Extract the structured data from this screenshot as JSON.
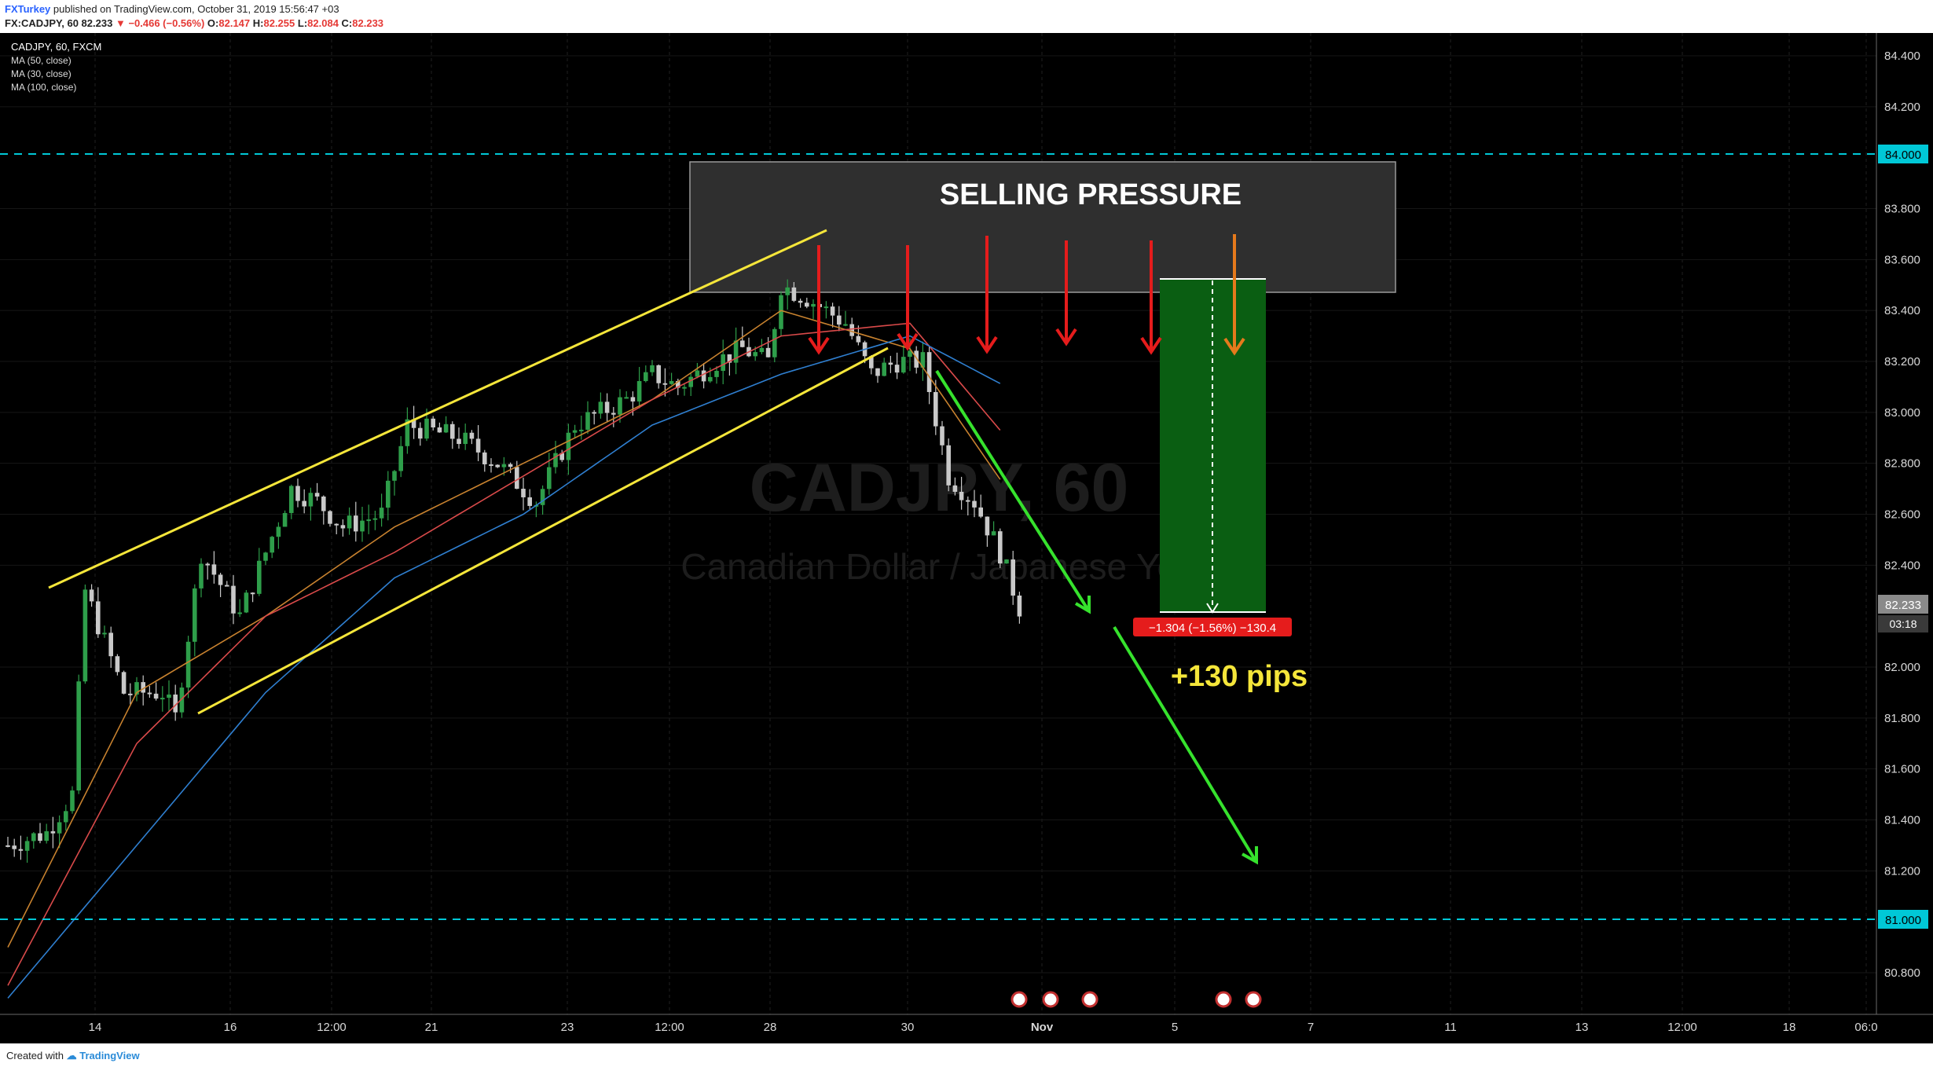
{
  "header": {
    "author": "FXTurkey",
    "published_text": "published on TradingView.com, October 31, 2019 15:56:47 +03",
    "symbol": "FX:CADJPY, 60",
    "last": "82.233",
    "change_arrow": "▼",
    "change": "−0.466 (−0.56%)",
    "open_label": "O:",
    "open": "82.147",
    "high_label": "H:",
    "high": "82.255",
    "low_label": "L:",
    "low": "82.084",
    "close_label": "C:",
    "close": "82.233"
  },
  "legend": {
    "symbol": "CADJPY, 60, FXCM",
    "indicators": [
      "MA (50, close)",
      "MA (30, close)",
      "MA (100, close)"
    ]
  },
  "watermark": {
    "ticker": "CADJPY, 60",
    "name": "Canadian Dollar / Japanese Yen"
  },
  "annotations": {
    "zone_label": "SELLING PRESSURE",
    "pips_label": "+130 pips",
    "measure_label": "−1.304 (−1.56%) −130.4"
  },
  "price_badges": {
    "level_high": "84.000",
    "level_low": "81.000",
    "last": "82.233",
    "countdown": "03:18"
  },
  "footer": {
    "created_with": "Created with",
    "brand": "TradingView"
  },
  "colors": {
    "background": "#000000",
    "trendline": "#f5e63a",
    "level": "#00c8d7",
    "arrow_red": "#e51c1c",
    "arrow_green": "#36e22d",
    "target_box": "#0a5e12",
    "ma50": "#d94a4a",
    "ma30": "#c8822f",
    "ma100": "#2f7fd0",
    "candle_up": "#2e9e4a",
    "candle_down": "#c9c9c9",
    "pips_text": "#f5e63a"
  },
  "chart_data": {
    "type": "line",
    "title": "CADJPY, 60, FXCM",
    "xlabel": "",
    "ylabel": "",
    "ylim": [
      80.65,
      84.52
    ],
    "x_ticks": [
      "14",
      "16",
      "12:00",
      "21",
      "23",
      "12:00",
      "28",
      "30",
      "Nov",
      "5",
      "7",
      "11",
      "13",
      "12:00",
      "18",
      "06:0"
    ],
    "y_ticks": [
      84.4,
      84.2,
      83.8,
      83.6,
      83.4,
      83.2,
      83.0,
      82.8,
      82.6,
      82.4,
      82.0,
      81.8,
      81.6,
      81.4,
      81.2,
      80.8
    ],
    "series": [
      {
        "name": "CADJPY",
        "x": [
          0,
          6,
          10,
          12,
          18,
          24,
          26,
          30,
          36,
          44,
          48,
          52,
          58,
          62,
          70,
          76,
          82,
          88,
          96,
          100,
          104,
          110,
          114,
          118,
          120,
          124,
          130,
          134,
          138,
          142,
          146,
          150,
          154,
          157
        ],
        "values": [
          81.3,
          81.35,
          81.5,
          82.3,
          81.9,
          81.9,
          81.8,
          82.45,
          82.2,
          82.7,
          82.65,
          82.55,
          82.6,
          82.95,
          82.9,
          82.8,
          82.65,
          82.95,
          83.05,
          83.15,
          83.1,
          83.2,
          83.25,
          83.2,
          83.5,
          83.45,
          83.35,
          83.15,
          83.2,
          83.2,
          82.75,
          82.65,
          82.45,
          82.233
        ]
      },
      {
        "name": "MA (30, close)",
        "x": [
          0,
          20,
          40,
          60,
          80,
          100,
          120,
          140,
          155
        ],
        "values": [
          80.9,
          81.9,
          82.2,
          82.55,
          82.8,
          83.05,
          83.4,
          83.25,
          82.7
        ]
      },
      {
        "name": "MA (50, close)",
        "x": [
          0,
          20,
          40,
          60,
          80,
          100,
          120,
          140,
          155
        ],
        "values": [
          80.75,
          81.7,
          82.2,
          82.45,
          82.75,
          83.05,
          83.3,
          83.35,
          82.9
        ]
      },
      {
        "name": "MA (100, close)",
        "x": [
          0,
          20,
          40,
          60,
          80,
          100,
          120,
          140,
          155
        ],
        "values": [
          80.7,
          81.3,
          81.9,
          82.35,
          82.6,
          82.95,
          83.15,
          83.3,
          83.1
        ]
      }
    ],
    "levels": [
      84.0,
      81.0
    ],
    "selling_zone": [
      83.45,
      84.0
    ],
    "target_box": [
      82.233,
      83.537
    ],
    "last_price": 82.233,
    "grid": true,
    "legend": "top-left"
  }
}
